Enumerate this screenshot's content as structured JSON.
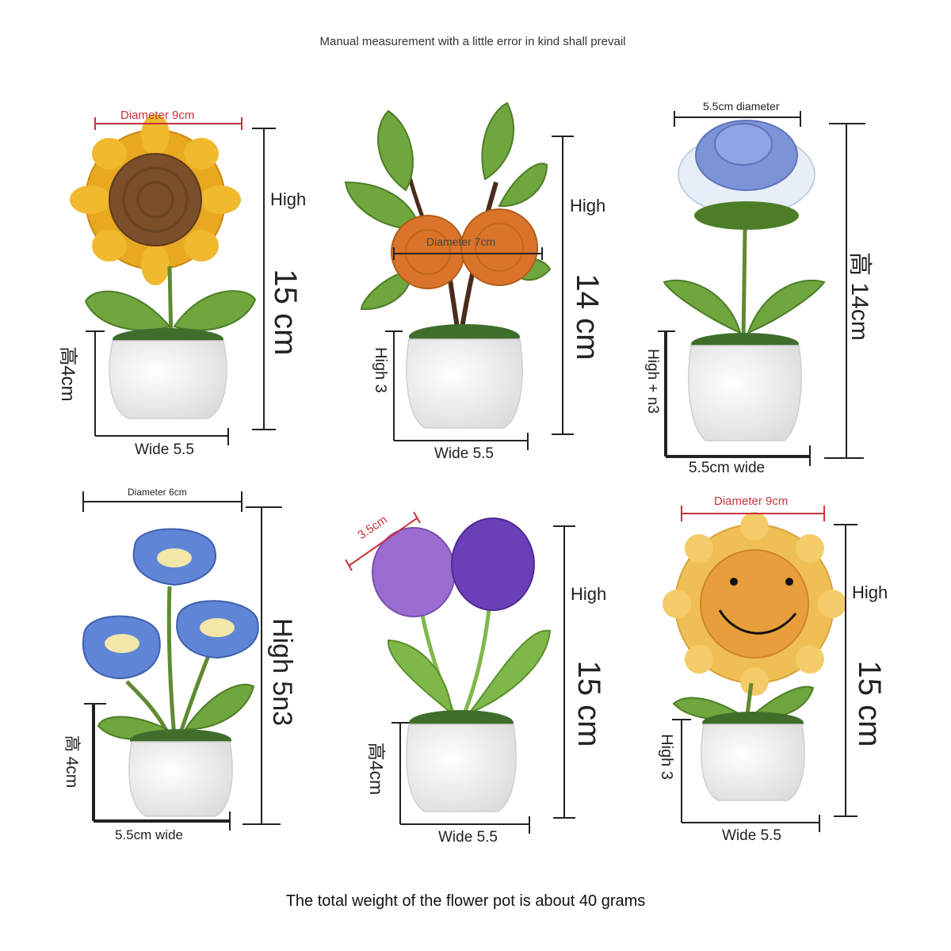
{
  "header": {
    "note": "Manual measurement with a little error in kind shall prevail"
  },
  "footer": {
    "weight_note": "The total weight of the flower pot is about 40 grams"
  },
  "colors": {
    "pot": "#f4f4f4",
    "grass": "#3f6e2c",
    "leaf": "#6fa63d",
    "sunflower_petal": "#e8a820",
    "sunflower_center": "#7a4f2a",
    "orange": "#d9742a",
    "rose_blue": "#7d93d8",
    "rose_white": "#e8eef8",
    "bell_blue": "#5f86d6",
    "tulip_light": "#9a6ccf",
    "tulip_dark": "#6b3fb8",
    "smiley_petal": "#efbf55",
    "smiley_center": "#e89e3a",
    "dim_red": "#c8323c"
  },
  "products": [
    {
      "flower": "sunflower",
      "top_label": "Diameter 9cm",
      "height_word": "High",
      "height_value": "15 cm",
      "pot_height": "高4cm",
      "pot_width": "Wide 5.5"
    },
    {
      "flower": "orange-branch",
      "top_label": "Diameter 7cm",
      "height_word": "High",
      "height_value": "14 cm",
      "pot_height": "High 3",
      "pot_width": "Wide 5.5"
    },
    {
      "flower": "blue-rose",
      "top_label": "5.5cm diameter",
      "height_value": "高 14cm",
      "pot_height": "High + n3",
      "pot_width": "5.5cm wide"
    },
    {
      "flower": "bellflower",
      "top_label": "Diameter 6cm",
      "height_value": "High 5n3",
      "pot_height": "高 4cm",
      "pot_width": "5.5cm wide"
    },
    {
      "flower": "tulip",
      "top_label": "3.5cm",
      "height_word": "High",
      "height_value": "15 cm",
      "pot_height": "高4cm",
      "pot_width": "Wide 5.5"
    },
    {
      "flower": "smiley-sunflower",
      "top_label": "Diameter 9cm",
      "height_word": "High",
      "height_value": "15 cm",
      "pot_height": "High 3",
      "pot_width": "Wide 5.5"
    }
  ]
}
